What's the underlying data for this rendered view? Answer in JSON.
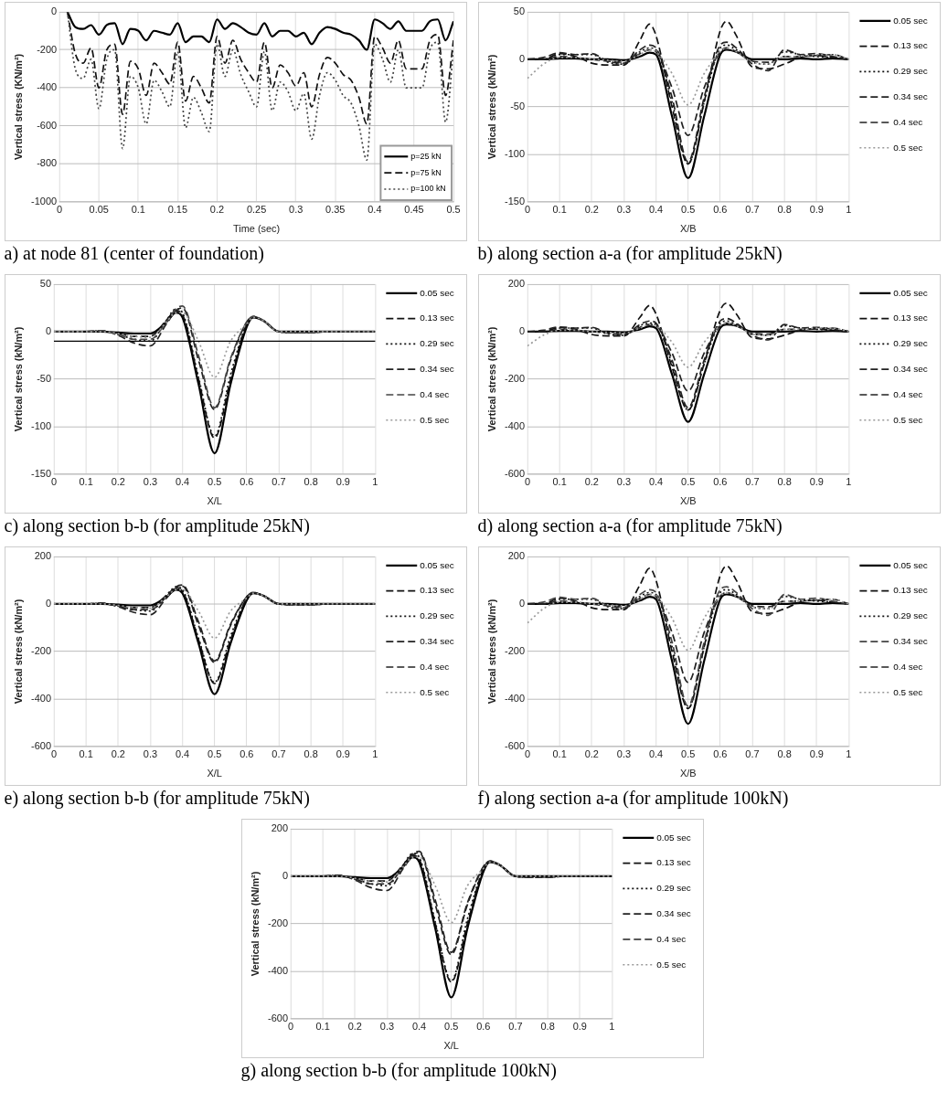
{
  "chart_data": [
    {
      "type": "line",
      "xlabel": "Time (sec)",
      "ylabel": "Vertical stress (KN/m²)",
      "annotations": [
        "a) at node 81 (center of foundation)"
      ],
      "xlim": [
        0,
        0.5
      ],
      "xticks": [
        0,
        0.05,
        0.1,
        0.15,
        0.2,
        0.25,
        0.3,
        0.35,
        0.4,
        0.45,
        0.5
      ],
      "ylim": [
        -1000,
        0
      ],
      "yticks": [
        -1000,
        -800,
        -600,
        -400,
        -200,
        0
      ],
      "grid": true,
      "legend": "bottom right",
      "x": [
        0.01,
        0.02,
        0.03,
        0.04,
        0.05,
        0.06,
        0.07,
        0.08,
        0.09,
        0.1,
        0.11,
        0.12,
        0.13,
        0.14,
        0.15,
        0.16,
        0.17,
        0.18,
        0.19,
        0.2,
        0.21,
        0.22,
        0.23,
        0.24,
        0.25,
        0.26,
        0.27,
        0.28,
        0.29,
        0.3,
        0.31,
        0.32,
        0.33,
        0.34,
        0.35,
        0.36,
        0.37,
        0.38,
        0.39,
        0.4,
        0.41,
        0.42,
        0.43,
        0.44,
        0.45,
        0.46,
        0.47,
        0.48,
        0.49,
        0.5
      ],
      "series": [
        {
          "name": "p=25 kN",
          "color": "#000000",
          "line_style": "solid",
          "values": [
            0,
            -80,
            -90,
            -70,
            -120,
            -70,
            -60,
            -170,
            -90,
            -100,
            -150,
            -100,
            -110,
            -120,
            -60,
            -160,
            -130,
            -130,
            -160,
            -40,
            -90,
            -60,
            -80,
            -110,
            -120,
            -60,
            -130,
            -100,
            -100,
            -130,
            -110,
            -170,
            -110,
            -80,
            -90,
            -110,
            -120,
            -150,
            -200,
            -40,
            -60,
            -90,
            -50,
            -100,
            -100,
            -100,
            -50,
            -40,
            -150,
            -50
          ]
        },
        {
          "name": "p=75 kN",
          "color": "#111111",
          "line_style": "dashed",
          "values": [
            0,
            -220,
            -270,
            -190,
            -400,
            -200,
            -170,
            -540,
            -260,
            -300,
            -440,
            -270,
            -320,
            -380,
            -160,
            -470,
            -340,
            -400,
            -480,
            -130,
            -270,
            -150,
            -250,
            -320,
            -370,
            -160,
            -400,
            -280,
            -320,
            -390,
            -320,
            -500,
            -330,
            -240,
            -270,
            -330,
            -360,
            -450,
            -590,
            -130,
            -190,
            -270,
            -150,
            -300,
            -300,
            -300,
            -150,
            -120,
            -440,
            -150
          ]
        },
        {
          "name": "p=100 kN",
          "color": "#444444",
          "line_style": "dotted",
          "values": [
            0,
            -300,
            -350,
            -250,
            -510,
            -250,
            -200,
            -720,
            -340,
            -400,
            -590,
            -360,
            -420,
            -500,
            -210,
            -610,
            -450,
            -530,
            -630,
            -170,
            -340,
            -200,
            -330,
            -420,
            -500,
            -210,
            -520,
            -370,
            -420,
            -520,
            -430,
            -670,
            -440,
            -320,
            -360,
            -440,
            -480,
            -600,
            -780,
            -170,
            -250,
            -370,
            -200,
            -400,
            -400,
            -400,
            -200,
            -160,
            -580,
            -200
          ]
        }
      ]
    },
    {
      "type": "line",
      "xlabel": "X/B",
      "ylabel": "Vertical stress (kN/m²)",
      "annotations": [
        "b) along section a-a (for amplitude 25kN)"
      ],
      "xlim": [
        0,
        1
      ],
      "xticks": [
        0,
        0.1,
        0.2,
        0.3,
        0.4,
        0.5,
        0.6,
        0.7,
        0.8,
        0.9,
        1
      ],
      "ylim": [
        -150,
        50
      ],
      "yticks": [
        -150,
        -100,
        -50,
        0,
        50
      ],
      "grid": true,
      "legend": "right",
      "x": [
        0,
        0.05,
        0.1,
        0.15,
        0.2,
        0.25,
        0.3,
        0.35,
        0.38,
        0.4,
        0.45,
        0.5,
        0.55,
        0.6,
        0.62,
        0.65,
        0.7,
        0.75,
        0.8,
        0.85,
        0.9,
        0.95,
        1
      ],
      "series": [
        {
          "name": "0.05 sec",
          "color": "#000000",
          "line_style": "solid",
          "values": [
            0,
            0,
            1,
            1,
            0,
            0,
            -1,
            3,
            7,
            5,
            -60,
            -125,
            -60,
            5,
            10,
            8,
            0,
            0,
            0,
            1,
            0,
            1,
            0
          ]
        },
        {
          "name": "0.13 sec",
          "color": "#111111",
          "line_style": "dashed",
          "values": [
            0,
            0,
            6,
            3,
            -4,
            -6,
            -6,
            20,
            37,
            25,
            -50,
            -110,
            -45,
            30,
            40,
            25,
            -8,
            -10,
            -5,
            2,
            4,
            2,
            0
          ]
        },
        {
          "name": "0.29 sec",
          "color": "#111111",
          "line_style": "dotted",
          "values": [
            0,
            0,
            5,
            5,
            5,
            -3,
            -5,
            8,
            12,
            10,
            -45,
            -110,
            -45,
            12,
            15,
            10,
            -3,
            -5,
            8,
            5,
            3,
            2,
            0
          ]
        },
        {
          "name": "0.34 sec",
          "color": "#222222",
          "line_style": "dashed",
          "values": [
            0,
            2,
            7,
            5,
            6,
            -2,
            -4,
            10,
            15,
            12,
            -40,
            -108,
            -40,
            15,
            18,
            12,
            -5,
            -12,
            10,
            5,
            6,
            3,
            0
          ]
        },
        {
          "name": "0.4 sec",
          "color": "#222222",
          "line_style": "dashed",
          "values": [
            0,
            0,
            3,
            2,
            0,
            -2,
            -3,
            6,
            10,
            8,
            -30,
            -80,
            -30,
            8,
            12,
            8,
            -2,
            -3,
            3,
            3,
            4,
            5,
            0
          ]
        },
        {
          "name": "0.5 sec",
          "color": "#999999",
          "line_style": "dotted",
          "values": [
            -20,
            -5,
            2,
            2,
            0,
            -1,
            -2,
            5,
            10,
            8,
            -15,
            -48,
            -15,
            8,
            12,
            8,
            -3,
            -5,
            3,
            3,
            5,
            5,
            0
          ]
        }
      ]
    },
    {
      "type": "line",
      "xlabel": "X/L",
      "ylabel": "Vertical stress (kN/m²)",
      "annotations": [
        "c) along section b-b (for amplitude 25kN)"
      ],
      "xlim": [
        0,
        1
      ],
      "xticks": [
        0,
        0.1,
        0.2,
        0.3,
        0.4,
        0.5,
        0.6,
        0.7,
        0.8,
        0.9,
        1
      ],
      "ylim": [
        -150,
        50
      ],
      "yticks": [
        -150,
        -100,
        -50,
        0,
        50
      ],
      "grid": true,
      "legend": "right",
      "ref_lines": [
        {
          "axis": "y",
          "value": -10,
          "color": "#000000"
        }
      ],
      "x": [
        0,
        0.05,
        0.1,
        0.15,
        0.2,
        0.25,
        0.3,
        0.35,
        0.38,
        0.4,
        0.45,
        0.5,
        0.55,
        0.6,
        0.62,
        0.65,
        0.7,
        0.75,
        0.8,
        0.85,
        0.9,
        0.95,
        1
      ],
      "series": [
        {
          "name": "0.05 sec",
          "color": "#000000",
          "line_style": "solid",
          "values": [
            0,
            0,
            0,
            0,
            -1,
            -2,
            -2,
            10,
            20,
            15,
            -55,
            -128,
            -55,
            5,
            15,
            12,
            0,
            0,
            0,
            0,
            0,
            0,
            0
          ]
        },
        {
          "name": "0.13 sec",
          "color": "#111111",
          "line_style": "dashed",
          "values": [
            0,
            0,
            0,
            0,
            -2,
            -5,
            -5,
            12,
            22,
            18,
            -50,
            -112,
            -50,
            8,
            15,
            12,
            0,
            -1,
            -1,
            0,
            0,
            0,
            0
          ]
        },
        {
          "name": "0.29 sec",
          "color": "#111111",
          "line_style": "dotted",
          "values": [
            0,
            0,
            0,
            1,
            -3,
            -8,
            -10,
            12,
            24,
            20,
            -48,
            -110,
            -45,
            8,
            16,
            12,
            0,
            -1,
            -1,
            0,
            0,
            0,
            0
          ]
        },
        {
          "name": "0.34 sec",
          "color": "#222222",
          "line_style": "dashed",
          "values": [
            0,
            0,
            0,
            1,
            -4,
            -12,
            -15,
            8,
            22,
            25,
            -30,
            -82,
            -30,
            10,
            16,
            12,
            0,
            -1,
            -1,
            0,
            0,
            0,
            0
          ]
        },
        {
          "name": "0.4 sec",
          "color": "#444444",
          "line_style": "dashed",
          "values": [
            0,
            0,
            0,
            1,
            -3,
            -8,
            -8,
            10,
            24,
            27,
            -25,
            -80,
            -28,
            10,
            16,
            12,
            0,
            -1,
            -1,
            0,
            0,
            0,
            0
          ]
        },
        {
          "name": "0.5 sec",
          "color": "#999999",
          "line_style": "dotted",
          "values": [
            0,
            0,
            0,
            0,
            -2,
            -5,
            -6,
            10,
            20,
            20,
            -10,
            -48,
            -10,
            8,
            15,
            12,
            0,
            0,
            0,
            0,
            0,
            0,
            0
          ]
        }
      ]
    },
    {
      "type": "line",
      "xlabel": "X/B",
      "ylabel": "Vertical stress (kN/m²)",
      "annotations": [
        "d) along section a-a (for amplitude 75kN)"
      ],
      "xlim": [
        0,
        1
      ],
      "xticks": [
        0,
        0.1,
        0.2,
        0.3,
        0.4,
        0.5,
        0.6,
        0.7,
        0.8,
        0.9,
        1
      ],
      "ylim": [
        -600,
        200
      ],
      "yticks": [
        -600,
        -400,
        -200,
        0,
        200
      ],
      "grid": true,
      "legend": "right",
      "x": [
        0,
        0.05,
        0.1,
        0.15,
        0.2,
        0.25,
        0.3,
        0.35,
        0.38,
        0.4,
        0.45,
        0.5,
        0.55,
        0.6,
        0.62,
        0.65,
        0.7,
        0.75,
        0.8,
        0.85,
        0.9,
        0.95,
        1
      ],
      "series": [
        {
          "name": "0.05 sec",
          "color": "#000000",
          "line_style": "solid",
          "values": [
            0,
            0,
            3,
            3,
            0,
            0,
            -3,
            10,
            22,
            15,
            -180,
            -380,
            -180,
            15,
            30,
            25,
            0,
            0,
            0,
            3,
            0,
            3,
            0
          ]
        },
        {
          "name": "0.13 sec",
          "color": "#111111",
          "line_style": "dashed",
          "values": [
            0,
            0,
            18,
            10,
            -12,
            -18,
            -18,
            60,
            110,
            75,
            -150,
            -330,
            -135,
            90,
            120,
            75,
            -25,
            -30,
            -15,
            6,
            12,
            6,
            0
          ]
        },
        {
          "name": "0.29 sec",
          "color": "#111111",
          "line_style": "dotted",
          "values": [
            0,
            0,
            15,
            15,
            15,
            -10,
            -15,
            25,
            36,
            30,
            -135,
            -330,
            -135,
            36,
            45,
            30,
            -10,
            -15,
            25,
            15,
            10,
            6,
            0
          ]
        },
        {
          "name": "0.34 sec",
          "color": "#222222",
          "line_style": "dashed",
          "values": [
            0,
            6,
            20,
            15,
            18,
            -6,
            -12,
            30,
            45,
            36,
            -120,
            -320,
            -120,
            45,
            55,
            36,
            -15,
            -35,
            30,
            15,
            18,
            10,
            0
          ]
        },
        {
          "name": "0.4 sec",
          "color": "#222222",
          "line_style": "dashed",
          "values": [
            0,
            0,
            10,
            6,
            0,
            -6,
            -10,
            18,
            30,
            25,
            -90,
            -250,
            -90,
            25,
            36,
            25,
            -6,
            -10,
            10,
            10,
            12,
            15,
            0
          ]
        },
        {
          "name": "0.5 sec",
          "color": "#999999",
          "line_style": "dotted",
          "values": [
            -60,
            -15,
            6,
            6,
            0,
            -3,
            -6,
            15,
            30,
            25,
            -45,
            -150,
            -45,
            25,
            36,
            25,
            -10,
            -15,
            10,
            10,
            15,
            15,
            0
          ]
        }
      ]
    },
    {
      "type": "line",
      "xlabel": "X/L",
      "ylabel": "Vertical stress (kN/m²)",
      "annotations": [
        "e) along section b-b (for amplitude 75kN)"
      ],
      "xlim": [
        0,
        1
      ],
      "xticks": [
        0,
        0.1,
        0.2,
        0.3,
        0.4,
        0.5,
        0.6,
        0.7,
        0.8,
        0.9,
        1
      ],
      "ylim": [
        -600,
        200
      ],
      "yticks": [
        -600,
        -400,
        -200,
        0,
        200
      ],
      "grid": true,
      "legend": "right",
      "x": [
        0,
        0.05,
        0.1,
        0.15,
        0.2,
        0.25,
        0.3,
        0.35,
        0.38,
        0.4,
        0.45,
        0.5,
        0.55,
        0.6,
        0.62,
        0.65,
        0.7,
        0.75,
        0.8,
        0.85,
        0.9,
        0.95,
        1
      ],
      "series": [
        {
          "name": "0.05 sec",
          "color": "#000000",
          "line_style": "solid",
          "values": [
            0,
            0,
            0,
            0,
            -3,
            -6,
            -6,
            30,
            60,
            45,
            -165,
            -380,
            -165,
            15,
            45,
            36,
            0,
            0,
            0,
            0,
            0,
            0,
            0
          ]
        },
        {
          "name": "0.13 sec",
          "color": "#111111",
          "line_style": "dashed",
          "values": [
            0,
            0,
            0,
            0,
            -6,
            -15,
            -15,
            36,
            66,
            54,
            -150,
            -335,
            -150,
            24,
            45,
            36,
            0,
            -3,
            -3,
            0,
            0,
            0,
            0
          ]
        },
        {
          "name": "0.29 sec",
          "color": "#111111",
          "line_style": "dotted",
          "values": [
            0,
            0,
            0,
            3,
            -9,
            -24,
            -30,
            36,
            72,
            60,
            -144,
            -330,
            -135,
            24,
            48,
            36,
            0,
            -3,
            -3,
            0,
            0,
            0,
            0
          ]
        },
        {
          "name": "0.34 sec",
          "color": "#222222",
          "line_style": "dashed",
          "values": [
            0,
            0,
            0,
            3,
            -12,
            -36,
            -45,
            24,
            66,
            75,
            -90,
            -246,
            -90,
            30,
            48,
            36,
            0,
            -3,
            -3,
            0,
            0,
            0,
            0
          ]
        },
        {
          "name": "0.4 sec",
          "color": "#222222",
          "line_style": "dashed",
          "values": [
            0,
            0,
            0,
            3,
            -9,
            -24,
            -24,
            30,
            72,
            80,
            -75,
            -240,
            -84,
            30,
            48,
            36,
            0,
            -3,
            -3,
            0,
            0,
            0,
            0
          ]
        },
        {
          "name": "0.5 sec",
          "color": "#999999",
          "line_style": "dotted",
          "values": [
            0,
            0,
            0,
            0,
            -6,
            -15,
            -18,
            30,
            60,
            60,
            -30,
            -144,
            -30,
            24,
            45,
            36,
            0,
            0,
            0,
            0,
            0,
            0,
            0
          ]
        }
      ]
    },
    {
      "type": "line",
      "xlabel": "X/B",
      "ylabel": "Vertical stress (kN/m²)",
      "annotations": [
        "f) along section a-a (for amplitude 100kN)"
      ],
      "xlim": [
        0,
        1
      ],
      "xticks": [
        0,
        0.1,
        0.2,
        0.3,
        0.4,
        0.5,
        0.6,
        0.7,
        0.8,
        0.9,
        1
      ],
      "ylim": [
        -600,
        200
      ],
      "yticks": [
        -600,
        -400,
        -200,
        0,
        200
      ],
      "grid": true,
      "legend": "right",
      "x": [
        0,
        0.05,
        0.1,
        0.15,
        0.2,
        0.25,
        0.3,
        0.35,
        0.38,
        0.4,
        0.45,
        0.5,
        0.55,
        0.6,
        0.62,
        0.65,
        0.7,
        0.75,
        0.8,
        0.85,
        0.9,
        0.95,
        1
      ],
      "series": [
        {
          "name": "0.05 sec",
          "color": "#000000",
          "line_style": "solid",
          "values": [
            0,
            0,
            4,
            4,
            0,
            0,
            -4,
            14,
            30,
            20,
            -240,
            -505,
            -240,
            20,
            40,
            32,
            0,
            0,
            0,
            4,
            0,
            4,
            0
          ]
        },
        {
          "name": "0.13 sec",
          "color": "#111111",
          "line_style": "dashed",
          "values": [
            0,
            0,
            24,
            12,
            -16,
            -24,
            -24,
            80,
            150,
            100,
            -200,
            -440,
            -180,
            120,
            160,
            100,
            -32,
            -40,
            -20,
            8,
            16,
            8,
            0
          ]
        },
        {
          "name": "0.29 sec",
          "color": "#111111",
          "line_style": "dotted",
          "values": [
            0,
            0,
            20,
            20,
            20,
            -12,
            -20,
            32,
            48,
            40,
            -180,
            -440,
            -180,
            48,
            60,
            40,
            -12,
            -20,
            32,
            20,
            12,
            8,
            0
          ]
        },
        {
          "name": "0.34 sec",
          "color": "#444444",
          "line_style": "dashed",
          "values": [
            0,
            8,
            28,
            20,
            24,
            -8,
            -16,
            40,
            60,
            48,
            -160,
            -430,
            -160,
            60,
            72,
            48,
            -20,
            -48,
            40,
            20,
            24,
            12,
            0
          ]
        },
        {
          "name": "0.4 sec",
          "color": "#222222",
          "line_style": "dashed",
          "values": [
            0,
            0,
            12,
            8,
            0,
            -8,
            -12,
            24,
            40,
            32,
            -120,
            -330,
            -120,
            32,
            48,
            32,
            -8,
            -12,
            12,
            12,
            16,
            20,
            0
          ]
        },
        {
          "name": "0.5 sec",
          "color": "#999999",
          "line_style": "dotted",
          "values": [
            -80,
            -20,
            8,
            8,
            0,
            -4,
            -8,
            20,
            40,
            32,
            -60,
            -195,
            -60,
            32,
            48,
            32,
            -12,
            -20,
            12,
            12,
            20,
            20,
            0
          ]
        }
      ]
    },
    {
      "type": "line",
      "xlabel": "X/L",
      "ylabel": "Vertical stress (kN/m²)",
      "annotations": [
        "g) along section b-b (for amplitude 100kN)"
      ],
      "xlim": [
        0,
        1
      ],
      "xticks": [
        0,
        0.1,
        0.2,
        0.3,
        0.4,
        0.5,
        0.6,
        0.7,
        0.8,
        0.9,
        1
      ],
      "ylim": [
        -600,
        200
      ],
      "yticks": [
        -600,
        -400,
        -200,
        0,
        200
      ],
      "grid": true,
      "legend": "right",
      "x": [
        0,
        0.05,
        0.1,
        0.15,
        0.2,
        0.25,
        0.3,
        0.35,
        0.38,
        0.4,
        0.45,
        0.5,
        0.55,
        0.6,
        0.62,
        0.65,
        0.7,
        0.75,
        0.8,
        0.85,
        0.9,
        0.95,
        1
      ],
      "series": [
        {
          "name": "0.05 sec",
          "color": "#000000",
          "line_style": "solid",
          "values": [
            0,
            0,
            0,
            0,
            -4,
            -8,
            -8,
            40,
            80,
            60,
            -220,
            -510,
            -220,
            20,
            60,
            48,
            0,
            0,
            0,
            0,
            0,
            0,
            0
          ]
        },
        {
          "name": "0.13 sec",
          "color": "#111111",
          "line_style": "dashed",
          "values": [
            0,
            0,
            0,
            0,
            -8,
            -20,
            -20,
            48,
            88,
            72,
            -200,
            -445,
            -200,
            32,
            60,
            48,
            0,
            -4,
            -4,
            0,
            0,
            0,
            0
          ]
        },
        {
          "name": "0.29 sec",
          "color": "#111111",
          "line_style": "dotted",
          "values": [
            0,
            0,
            0,
            4,
            -12,
            -32,
            -40,
            48,
            96,
            80,
            -192,
            -440,
            -180,
            32,
            64,
            48,
            0,
            -4,
            -4,
            0,
            0,
            0,
            0
          ]
        },
        {
          "name": "0.34 sec",
          "color": "#222222",
          "line_style": "dashed",
          "values": [
            0,
            0,
            0,
            4,
            -16,
            -48,
            -60,
            32,
            88,
            100,
            -120,
            -330,
            -120,
            40,
            64,
            48,
            0,
            -4,
            -4,
            0,
            0,
            0,
            0
          ]
        },
        {
          "name": "0.4 sec",
          "color": "#222222",
          "line_style": "dashed",
          "values": [
            0,
            0,
            0,
            4,
            -12,
            -32,
            -32,
            40,
            96,
            105,
            -100,
            -320,
            -112,
            40,
            64,
            48,
            0,
            -4,
            -4,
            0,
            0,
            0,
            0
          ]
        },
        {
          "name": "0.5 sec",
          "color": "#999999",
          "line_style": "dotted",
          "values": [
            0,
            0,
            0,
            0,
            -8,
            -20,
            -24,
            40,
            80,
            80,
            -40,
            -195,
            -40,
            32,
            60,
            48,
            0,
            0,
            0,
            0,
            0,
            0,
            0
          ]
        }
      ]
    }
  ]
}
